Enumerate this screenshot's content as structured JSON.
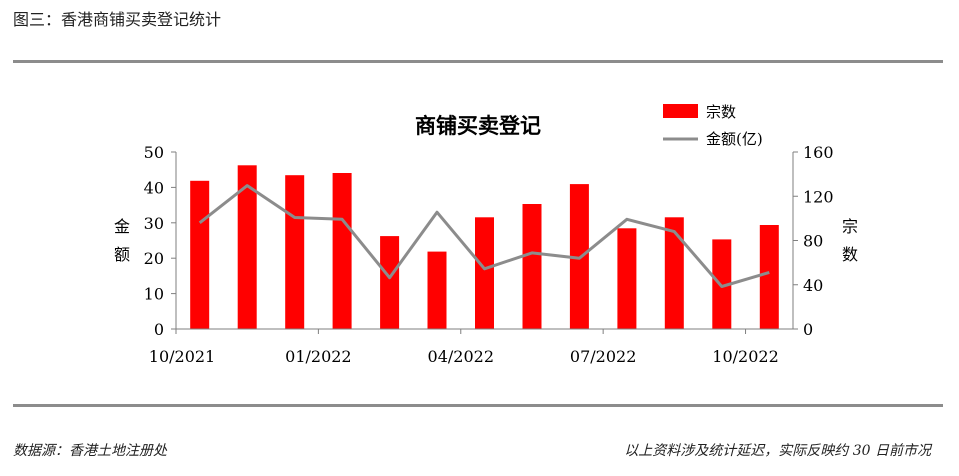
{
  "figure_caption": "图三：香港商铺买卖登记统计",
  "footer": {
    "source": "数据源：香港土地注册处",
    "note": "以上资料涉及统计延迟，实际反映约 30 日前市况"
  },
  "colors": {
    "bar": "#ff0000",
    "line": "#8c8c8c",
    "rule": "#8c8c8c"
  },
  "chart_data": {
    "type": "bar",
    "title": "商铺买卖登记",
    "categories": [
      "10/2021",
      "11/2021",
      "12/2021",
      "01/2022",
      "02/2022",
      "03/2022",
      "04/2022",
      "05/2022",
      "06/2022",
      "07/2022",
      "08/2022",
      "09/2022",
      "10/2022"
    ],
    "x_tick_labels": [
      "10/2021",
      "01/2022",
      "04/2022",
      "07/2022",
      "10/2022"
    ],
    "series": [
      {
        "name": "宗数",
        "type": "bar",
        "axis": "right",
        "values": [
          134,
          148,
          139,
          141,
          84,
          70,
          101,
          113,
          131,
          91,
          101,
          81,
          94
        ]
      },
      {
        "name": "金额(亿)",
        "type": "line",
        "axis": "left",
        "values": [
          30.0,
          40.5,
          31.5,
          31.0,
          14.5,
          33.0,
          17.0,
          21.5,
          20.0,
          31.0,
          27.5,
          12.0,
          16.0
        ]
      }
    ],
    "y_left": {
      "label": [
        "金",
        "额"
      ],
      "lim": [
        0,
        50
      ],
      "ticks": [
        0,
        10,
        20,
        30,
        40,
        50
      ]
    },
    "y_right": {
      "label": [
        "宗",
        "数"
      ],
      "lim": [
        0,
        160
      ],
      "ticks": [
        0,
        40,
        80,
        120,
        160
      ]
    },
    "grid": false,
    "legend_position": "top-right"
  }
}
